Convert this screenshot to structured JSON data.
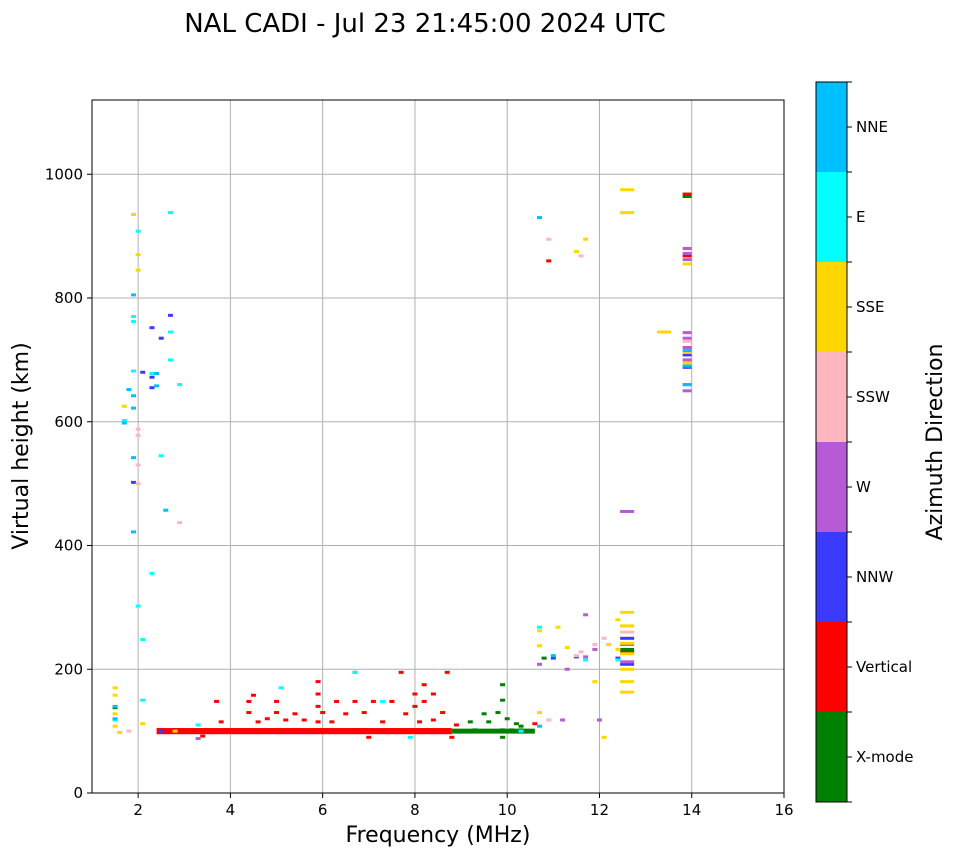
{
  "chart_data": {
    "type": "scatter",
    "title": "NAL CADI - Jul 23 21:45:00 2024 UTC",
    "xlabel": "Frequency (MHz)",
    "ylabel": "Virtual height (km)",
    "xlim": [
      1,
      16
    ],
    "ylim": [
      0,
      1120
    ],
    "xticks": [
      "2",
      "4",
      "6",
      "8",
      "10",
      "12",
      "14",
      "16"
    ],
    "yticks": [
      "0",
      "200",
      "400",
      "600",
      "800",
      "1000"
    ],
    "grid": true,
    "colorbar": {
      "label": "Azimuth Direction",
      "categories": [
        {
          "name": "X-mode",
          "color": "#008000"
        },
        {
          "name": "Vertical",
          "color": "#ff0000"
        },
        {
          "name": "NNW",
          "color": "#3a3aff"
        },
        {
          "name": "W",
          "color": "#b65ad6"
        },
        {
          "name": "SSW",
          "color": "#ffb6c1"
        },
        {
          "name": "SSE",
          "color": "#ffd700"
        },
        {
          "name": "E",
          "color": "#00ffff"
        },
        {
          "name": "NNE",
          "color": "#00bfff"
        }
      ]
    },
    "series": [
      {
        "name": "Vertical",
        "color": "#ff0000",
        "points": [
          [
            2.5,
            98
          ],
          [
            2.7,
            100
          ],
          [
            2.9,
            98
          ],
          [
            3.1,
            100
          ],
          [
            3.3,
            100
          ],
          [
            3.5,
            102
          ],
          [
            3.7,
            100
          ],
          [
            3.9,
            102
          ],
          [
            4.1,
            100
          ],
          [
            4.3,
            102
          ],
          [
            4.5,
            100
          ],
          [
            4.7,
            102
          ],
          [
            4.9,
            100
          ],
          [
            5.1,
            102
          ],
          [
            5.3,
            100
          ],
          [
            5.5,
            102
          ],
          [
            5.7,
            100
          ],
          [
            5.9,
            102
          ],
          [
            6.1,
            100
          ],
          [
            6.3,
            102
          ],
          [
            6.5,
            100
          ],
          [
            6.7,
            102
          ],
          [
            6.9,
            100
          ],
          [
            7.1,
            102
          ],
          [
            7.3,
            100
          ],
          [
            7.5,
            102
          ],
          [
            7.7,
            100
          ],
          [
            7.9,
            102
          ],
          [
            8.1,
            100
          ],
          [
            8.3,
            102
          ],
          [
            8.5,
            100
          ],
          [
            8.7,
            100
          ],
          [
            4.4,
            148
          ],
          [
            4.4,
            130
          ],
          [
            4.5,
            158
          ],
          [
            4.6,
            115
          ],
          [
            4.8,
            120
          ],
          [
            5.0,
            148
          ],
          [
            5.0,
            130
          ],
          [
            5.2,
            118
          ],
          [
            5.4,
            128
          ],
          [
            5.6,
            118
          ],
          [
            5.9,
            180
          ],
          [
            5.9,
            160
          ],
          [
            5.9,
            140
          ],
          [
            5.9,
            115
          ],
          [
            6.0,
            130
          ],
          [
            6.2,
            115
          ],
          [
            6.3,
            148
          ],
          [
            6.5,
            128
          ],
          [
            6.7,
            148
          ],
          [
            6.7,
            195
          ],
          [
            6.9,
            130
          ],
          [
            7.1,
            148
          ],
          [
            7.3,
            115
          ],
          [
            7.5,
            148
          ],
          [
            7.7,
            195
          ],
          [
            7.8,
            128
          ],
          [
            8.0,
            160
          ],
          [
            8.0,
            140
          ],
          [
            8.1,
            115
          ],
          [
            8.2,
            175
          ],
          [
            8.2,
            148
          ],
          [
            8.4,
            160
          ],
          [
            8.4,
            118
          ],
          [
            8.6,
            130
          ],
          [
            8.7,
            195
          ],
          [
            8.9,
            110
          ],
          [
            7.0,
            90
          ],
          [
            8.8,
            90
          ],
          [
            3.7,
            148
          ],
          [
            3.8,
            115
          ],
          [
            10.9,
            860
          ],
          [
            13.9,
            968
          ],
          [
            13.9,
            868
          ],
          [
            12.6,
            228
          ],
          [
            10.6,
            112
          ],
          [
            3.4,
            92
          ]
        ]
      },
      {
        "name": "X-mode",
        "color": "#008000",
        "points": [
          [
            8.9,
            100
          ],
          [
            9.1,
            100
          ],
          [
            9.3,
            102
          ],
          [
            9.5,
            100
          ],
          [
            9.7,
            100
          ],
          [
            9.9,
            102
          ],
          [
            10.1,
            102
          ],
          [
            10.3,
            102
          ],
          [
            10.5,
            100
          ],
          [
            9.2,
            115
          ],
          [
            9.6,
            115
          ],
          [
            9.8,
            130
          ],
          [
            9.9,
            150
          ],
          [
            9.9,
            175
          ],
          [
            10.0,
            120
          ],
          [
            9.5,
            128
          ],
          [
            10.2,
            112
          ],
          [
            9.9,
            90
          ],
          [
            10.3,
            108
          ],
          [
            13.9,
            964
          ],
          [
            1.5,
            138
          ],
          [
            12.6,
            232
          ],
          [
            10.8,
            218
          ]
        ]
      },
      {
        "name": "NNW",
        "color": "#3a3aff",
        "points": [
          [
            1.9,
            502
          ],
          [
            2.1,
            680
          ],
          [
            2.3,
            752
          ],
          [
            2.3,
            672
          ],
          [
            2.5,
            735
          ],
          [
            2.3,
            655
          ],
          [
            2.7,
            772
          ],
          [
            2.5,
            100
          ],
          [
            12.6,
            250
          ],
          [
            12.6,
            208
          ],
          [
            13.9,
            688
          ],
          [
            13.9,
            708
          ],
          [
            12.4,
            218
          ],
          [
            11.0,
            218
          ],
          [
            11.5,
            220
          ]
        ]
      },
      {
        "name": "W",
        "color": "#b65ad6",
        "points": [
          [
            12.6,
            455
          ],
          [
            13.9,
            880
          ],
          [
            13.9,
            872
          ],
          [
            13.9,
            862
          ],
          [
            13.9,
            744
          ],
          [
            13.9,
            735
          ],
          [
            13.9,
            720
          ],
          [
            13.9,
            700
          ],
          [
            13.9,
            660
          ],
          [
            13.9,
            650
          ],
          [
            10.7,
            208
          ],
          [
            11.3,
            200
          ],
          [
            11.7,
            220
          ],
          [
            11.9,
            232
          ],
          [
            11.7,
            288
          ],
          [
            11.2,
            118
          ],
          [
            12.0,
            118
          ],
          [
            12.6,
            240
          ],
          [
            12.6,
            212
          ],
          [
            3.3,
            88
          ]
        ]
      },
      {
        "name": "SSW",
        "color": "#ffb6c1",
        "points": [
          [
            1.8,
            100
          ],
          [
            2.0,
            578
          ],
          [
            2.0,
            588
          ],
          [
            2.0,
            530
          ],
          [
            2.0,
            500
          ],
          [
            2.9,
            437
          ],
          [
            10.9,
            895
          ],
          [
            11.5,
            222
          ],
          [
            11.9,
            240
          ],
          [
            12.1,
            250
          ],
          [
            12.6,
            260
          ],
          [
            12.6,
            270
          ],
          [
            11.6,
            228
          ],
          [
            10.9,
            118
          ],
          [
            11.6,
            868
          ],
          [
            13.9,
            730
          ]
        ]
      },
      {
        "name": "SSE",
        "color": "#ffd700",
        "points": [
          [
            1.5,
            170
          ],
          [
            1.5,
            158
          ],
          [
            1.5,
            128
          ],
          [
            1.5,
            108
          ],
          [
            1.6,
            98
          ],
          [
            1.7,
            625
          ],
          [
            2.0,
            870
          ],
          [
            1.9,
            935
          ],
          [
            2.0,
            845
          ],
          [
            2.1,
            112
          ],
          [
            12.6,
            975
          ],
          [
            12.6,
            938
          ],
          [
            11.5,
            875
          ],
          [
            11.7,
            895
          ],
          [
            13.4,
            745
          ],
          [
            12.6,
            292
          ],
          [
            12.6,
            270
          ],
          [
            12.4,
            280
          ],
          [
            12.6,
            242
          ],
          [
            12.6,
            225
          ],
          [
            12.6,
            200
          ],
          [
            12.6,
            180
          ],
          [
            12.6,
            163
          ],
          [
            12.4,
            232
          ],
          [
            12.2,
            240
          ],
          [
            11.9,
            180
          ],
          [
            11.1,
            268
          ],
          [
            11.3,
            235
          ],
          [
            10.7,
            238
          ],
          [
            10.7,
            262
          ],
          [
            10.7,
            130
          ],
          [
            12.1,
            90
          ],
          [
            13.9,
            855
          ],
          [
            13.9,
            712
          ],
          [
            13.9,
            695
          ],
          [
            2.8,
            100
          ]
        ]
      },
      {
        "name": "E",
        "color": "#00ffff",
        "points": [
          [
            1.7,
            602
          ],
          [
            1.9,
            770
          ],
          [
            1.9,
            762
          ],
          [
            1.9,
            682
          ],
          [
            2.0,
            908
          ],
          [
            2.0,
            302
          ],
          [
            2.1,
            248
          ],
          [
            2.1,
            150
          ],
          [
            2.3,
            678
          ],
          [
            2.3,
            355
          ],
          [
            2.5,
            545
          ],
          [
            2.7,
            938
          ],
          [
            2.7,
            700
          ],
          [
            2.7,
            745
          ],
          [
            2.9,
            660
          ],
          [
            5.1,
            170
          ],
          [
            6.7,
            195
          ],
          [
            7.3,
            148
          ],
          [
            7.9,
            90
          ],
          [
            10.7,
            268
          ],
          [
            10.3,
            100
          ],
          [
            11.7,
            215
          ],
          [
            12.4,
            215
          ],
          [
            3.3,
            110
          ],
          [
            1.5,
            118
          ]
        ]
      },
      {
        "name": "NNE",
        "color": "#00bfff",
        "points": [
          [
            1.7,
            598
          ],
          [
            1.8,
            652
          ],
          [
            1.9,
            642
          ],
          [
            1.9,
            622
          ],
          [
            1.9,
            542
          ],
          [
            1.9,
            422
          ],
          [
            1.9,
            805
          ],
          [
            2.4,
            658
          ],
          [
            2.4,
            678
          ],
          [
            2.6,
            457
          ],
          [
            10.7,
            930
          ],
          [
            13.9,
            690
          ],
          [
            13.9,
            715
          ],
          [
            13.9,
            660
          ],
          [
            10.7,
            108
          ],
          [
            11.0,
            222
          ],
          [
            1.5,
            140
          ],
          [
            1.5,
            120
          ]
        ]
      }
    ]
  }
}
